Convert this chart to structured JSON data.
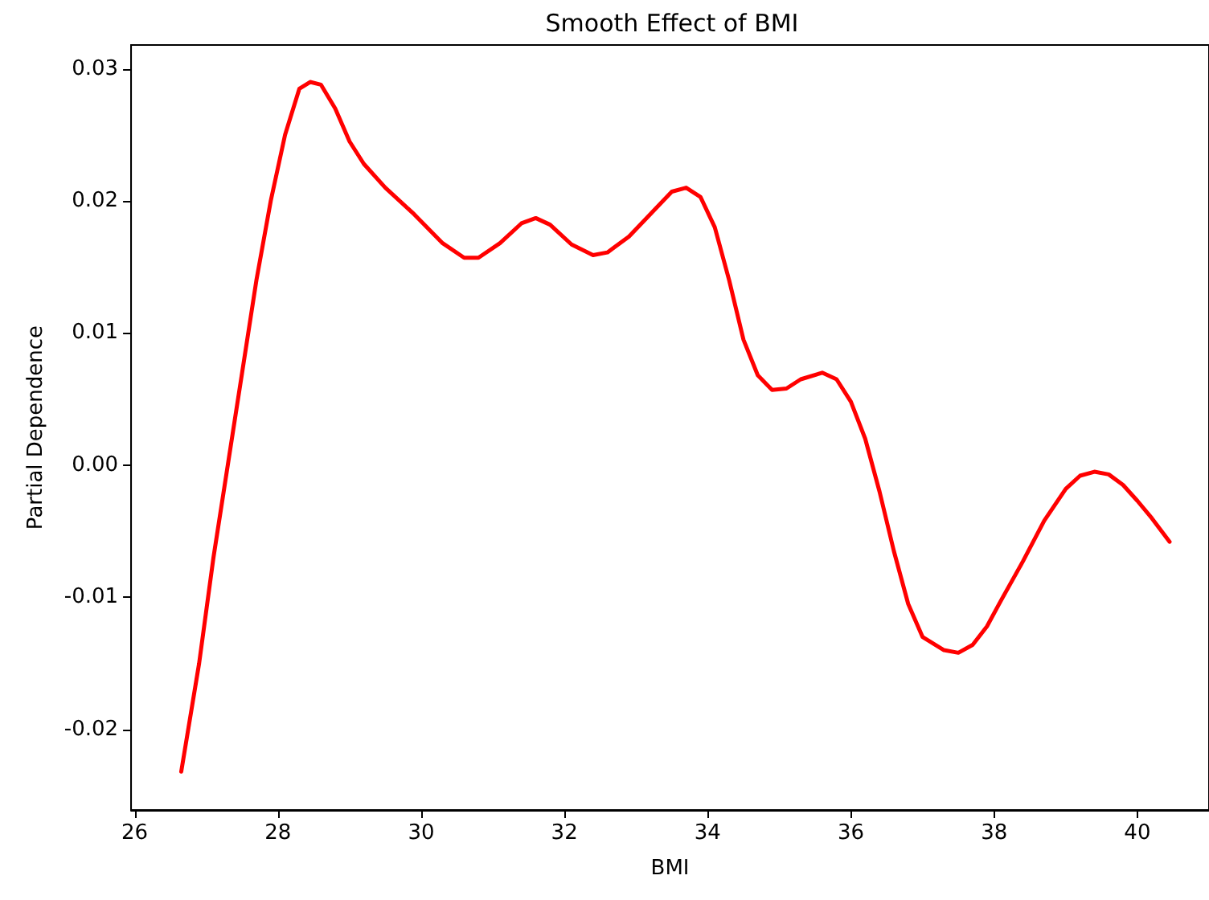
{
  "chart_data": {
    "type": "line",
    "title": "Smooth Effect of BMI",
    "xlabel": "BMI",
    "ylabel": "Partial Dependence",
    "xlim": [
      25.95,
      41.0
    ],
    "xticks": [
      26,
      28,
      30,
      32,
      34,
      36,
      38,
      40
    ],
    "ylim": [
      -0.0261,
      0.0318
    ],
    "yticks": [
      {
        "value": -0.02,
        "label": "-0.02"
      },
      {
        "value": -0.01,
        "label": "-0.01"
      },
      {
        "value": 0,
        "label": "0.00"
      },
      {
        "value": 0.01,
        "label": "0.01"
      },
      {
        "value": 0.02,
        "label": "0.02"
      },
      {
        "value": 0.03,
        "label": "0.03"
      }
    ],
    "grid": false,
    "marker": "none",
    "line_style": "solid",
    "series": [
      {
        "color": "#ff0000",
        "x": [
          26.65,
          26.9,
          27.1,
          27.3,
          27.5,
          27.7,
          27.9,
          28.1,
          28.3,
          28.45,
          28.6,
          28.8,
          29.0,
          29.2,
          29.5,
          29.9,
          30.3,
          30.6,
          30.8,
          31.1,
          31.4,
          31.6,
          31.8,
          32.1,
          32.4,
          32.6,
          32.9,
          33.2,
          33.5,
          33.7,
          33.9,
          34.1,
          34.3,
          34.5,
          34.7,
          34.9,
          35.1,
          35.3,
          35.6,
          35.8,
          36.0,
          36.2,
          36.4,
          36.6,
          36.8,
          37.0,
          37.3,
          37.5,
          37.7,
          37.9,
          38.1,
          38.4,
          38.7,
          39.0,
          39.2,
          39.4,
          39.6,
          39.8,
          40.0,
          40.2,
          40.45
        ],
        "values": [
          -0.0232,
          -0.015,
          -0.007,
          0.0,
          0.007,
          0.014,
          0.02,
          0.025,
          0.0285,
          0.029,
          0.0288,
          0.027,
          0.0245,
          0.0228,
          0.021,
          0.019,
          0.0168,
          0.0157,
          0.0157,
          0.0168,
          0.0183,
          0.0187,
          0.0182,
          0.0167,
          0.0159,
          0.0161,
          0.0173,
          0.019,
          0.0207,
          0.021,
          0.0203,
          0.018,
          0.014,
          0.0095,
          0.0068,
          0.0057,
          0.0058,
          0.0065,
          0.007,
          0.0065,
          0.0048,
          0.002,
          -0.002,
          -0.0065,
          -0.0105,
          -0.013,
          -0.014,
          -0.0142,
          -0.0136,
          -0.0122,
          -0.0102,
          -0.0073,
          -0.0042,
          -0.0018,
          -0.0008,
          -0.0005,
          -0.0007,
          -0.0015,
          -0.0027,
          -0.004,
          -0.0058
        ]
      }
    ]
  }
}
